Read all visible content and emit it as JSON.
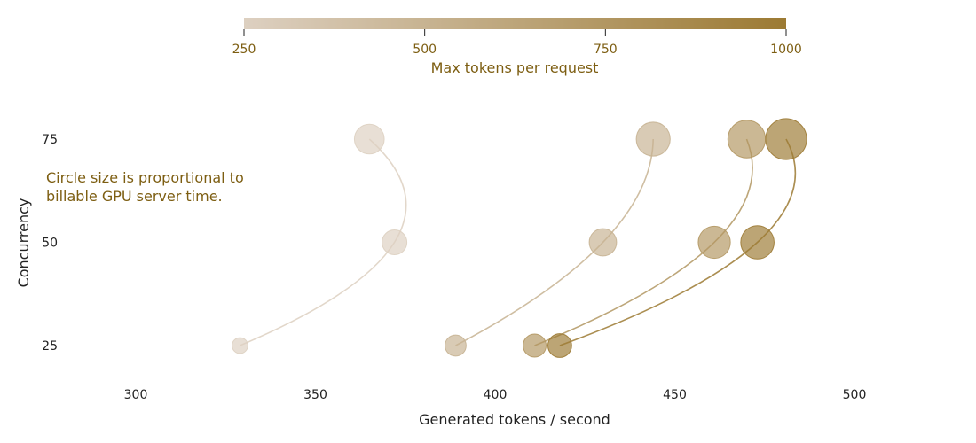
{
  "chart_data": {
    "type": "scatter",
    "title": "",
    "xlabel": "Generated tokens / second",
    "ylabel": "Concurrency",
    "xlim": [
      280,
      535
    ],
    "ylim": [
      15,
      95
    ],
    "xticks": [
      300,
      350,
      400,
      450,
      500
    ],
    "yticks": [
      25,
      50,
      75
    ],
    "grid": false,
    "colorbar": {
      "label": "Max tokens per request",
      "range": [
        250,
        1000
      ],
      "ticks": [
        250,
        500,
        750,
        1000
      ],
      "color_low": "#ddd0c1",
      "color_high": "#9c7a33",
      "label_color": "#7d5e12"
    },
    "annotation": {
      "lines": [
        "Circle size is proportional to",
        "billable GPU server time."
      ],
      "color": "#7d5e12"
    },
    "series": [
      {
        "max_tokens": 250,
        "points": [
          {
            "x": 329,
            "y": 25,
            "size": 1.4
          },
          {
            "x": 372,
            "y": 50,
            "size": 3.5
          },
          {
            "x": 365,
            "y": 75,
            "size": 5.0
          }
        ]
      },
      {
        "max_tokens": 500,
        "points": [
          {
            "x": 389,
            "y": 25,
            "size": 2.5
          },
          {
            "x": 430,
            "y": 50,
            "size": 4.2
          },
          {
            "x": 444,
            "y": 75,
            "size": 6.5
          }
        ]
      },
      {
        "max_tokens": 750,
        "points": [
          {
            "x": 411,
            "y": 25,
            "size": 3.0
          },
          {
            "x": 461,
            "y": 50,
            "size": 5.8
          },
          {
            "x": 470,
            "y": 75,
            "size": 8.0
          }
        ]
      },
      {
        "max_tokens": 1000,
        "points": [
          {
            "x": 418,
            "y": 25,
            "size": 3.2
          },
          {
            "x": 473,
            "y": 50,
            "size": 6.3
          },
          {
            "x": 481,
            "y": 75,
            "size": 9.5
          }
        ]
      }
    ]
  }
}
